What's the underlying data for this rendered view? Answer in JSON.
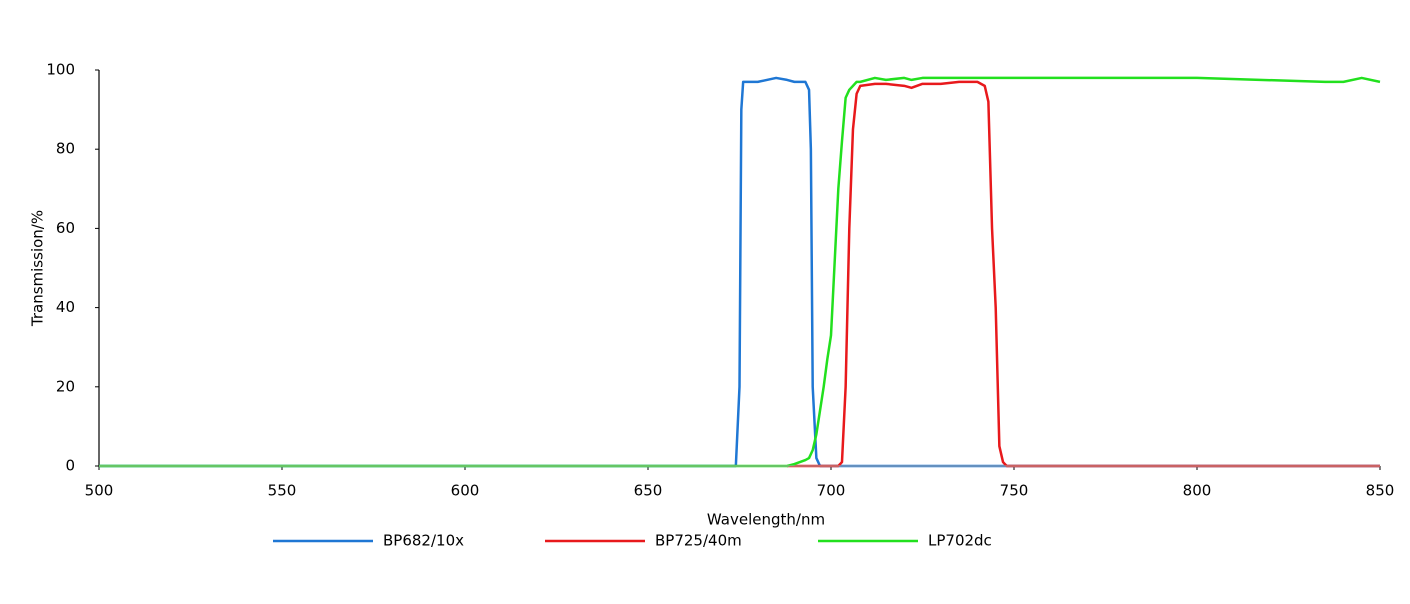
{
  "chart_data": {
    "type": "line",
    "x_label": "Wavelength/nm",
    "y_label": "Transmission/%",
    "x": [
      500,
      674,
      675,
      675.5,
      676,
      680,
      685,
      688,
      690,
      693,
      694,
      694.5,
      695,
      696,
      697,
      698,
      699,
      700,
      702,
      703,
      704,
      705,
      706,
      707,
      708,
      712,
      715,
      720,
      722,
      725,
      730,
      735,
      740,
      742,
      743,
      744,
      745,
      746,
      747,
      748,
      800,
      835,
      840,
      845,
      850
    ],
    "series": [
      {
        "name": "BP682/10x",
        "color": "#1f77d4",
        "values": [
          0,
          0,
          20,
          90,
          97,
          97,
          98,
          97.5,
          97,
          97,
          95,
          80,
          20,
          2,
          0,
          0,
          0,
          0,
          0,
          0,
          0,
          0,
          0,
          0,
          0,
          0,
          0,
          0,
          0,
          0,
          0,
          0,
          0,
          0,
          0,
          0,
          0,
          0,
          0,
          0,
          0,
          0,
          0,
          0,
          0
        ]
      },
      {
        "name": "BP725/40m",
        "color": "#e8191c",
        "values": [
          null,
          null,
          null,
          null,
          null,
          null,
          null,
          0,
          0,
          0,
          0,
          0,
          0,
          0,
          0,
          0,
          0,
          0,
          0,
          1,
          20,
          60,
          85,
          94,
          96,
          96.5,
          96.5,
          96,
          95.5,
          96.5,
          96.5,
          97,
          97,
          96,
          92,
          60,
          40,
          5,
          1,
          0,
          0,
          0,
          0,
          0,
          0
        ]
      },
      {
        "name": "LP702dc",
        "color": "#22e01e",
        "values": [
          0,
          0,
          0,
          0,
          0,
          0,
          0,
          0,
          0.5,
          1.5,
          2,
          3,
          4,
          8,
          14,
          20,
          27,
          33,
          70,
          82,
          93,
          95,
          96,
          97,
          97,
          98,
          97.5,
          98,
          97.5,
          98,
          98,
          98,
          98,
          98,
          98,
          98,
          98,
          98,
          98,
          98,
          98,
          97,
          97,
          98,
          97
        ]
      }
    ],
    "xlim": [
      500,
      850
    ],
    "xticks": [
      500,
      550,
      600,
      650,
      700,
      750,
      800,
      850
    ],
    "ylim": [
      0,
      100
    ],
    "yticks": [
      0,
      20,
      40,
      60,
      80,
      100
    ],
    "grid": false,
    "legend": "bottom"
  }
}
